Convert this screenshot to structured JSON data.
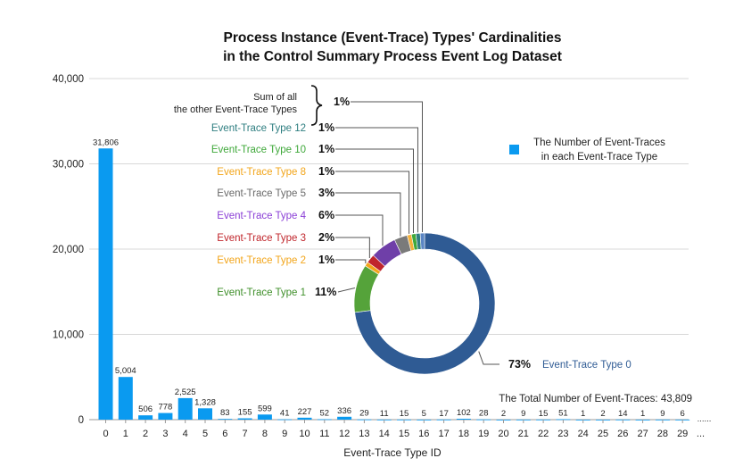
{
  "chart_data": [
    {
      "type": "bar",
      "title_lines": [
        "Process Instance (Event-Trace) Types' Cardinalities",
        "in the Control Summary Process Event Log Dataset"
      ],
      "xlabel": "Event-Trace Type ID",
      "ylabel": "",
      "ylim": [
        0,
        40000
      ],
      "yticks": [
        "0",
        "10,000",
        "20,000",
        "30,000",
        "40,000"
      ],
      "ytick_values": [
        0,
        10000,
        20000,
        30000,
        40000
      ],
      "grid": true,
      "bar_color": "#0a9af0",
      "categories": [
        "0",
        "1",
        "2",
        "3",
        "4",
        "5",
        "6",
        "7",
        "8",
        "9",
        "10",
        "11",
        "12",
        "13",
        "14",
        "15",
        "16",
        "17",
        "18",
        "19",
        "20",
        "21",
        "22",
        "23",
        "24",
        "25",
        "26",
        "27",
        "28",
        "29"
      ],
      "values": [
        31806,
        5004,
        506,
        778,
        2525,
        1328,
        83,
        155,
        599,
        41,
        227,
        52,
        336,
        29,
        11,
        15,
        5,
        17,
        102,
        28,
        2,
        9,
        15,
        51,
        1,
        2,
        14,
        1,
        9,
        6
      ],
      "value_labels": [
        "31,806",
        "5,004",
        "506",
        "778",
        "2,525",
        "1,328",
        "83",
        "155",
        "599",
        "41",
        "227",
        "52",
        "336",
        "29",
        "11",
        "15",
        "5",
        "17",
        "102",
        "28",
        "2",
        "9",
        "15",
        "51",
        "1",
        "2",
        "14",
        "1",
        "9",
        "6"
      ],
      "x_ellipsis": "...",
      "value_ellipsis": "......",
      "legend": "The Number of Event-Traces in each Event-Trace Type",
      "legend_lines": [
        "The Number of Event-Traces",
        "in each Event-Trace Type"
      ],
      "legend_placement": "right"
    },
    {
      "type": "pie",
      "style": "donut",
      "total_label": "The Total Number of Event-Traces: 43,809",
      "slices": [
        {
          "name": "Event-Trace Type 0",
          "value": 73,
          "pct": "73%",
          "color": "#2f5b94",
          "label_color": "#2f5b94"
        },
        {
          "name": "Event-Trace Type 1",
          "value": 11,
          "pct": "11%",
          "color": "#55a33a",
          "label_color": "#3f8f2a"
        },
        {
          "name": "Event-Trace Type 2",
          "value": 1,
          "pct": "1%",
          "color": "#f2a51a",
          "label_color": "#f2a51a"
        },
        {
          "name": "Event-Trace Type 3",
          "value": 2,
          "pct": "2%",
          "color": "#c0262c",
          "label_color": "#c0262c"
        },
        {
          "name": "Event-Trace Type 4",
          "value": 6,
          "pct": "6%",
          "color": "#6f3fa8",
          "label_color": "#8a3ed6"
        },
        {
          "name": "Event-Trace Type 5",
          "value": 3,
          "pct": "3%",
          "color": "#7a7a7a",
          "label_color": "#6a6a6a"
        },
        {
          "name": "Event-Trace Type 8",
          "value": 1,
          "pct": "1%",
          "color": "#f4b13b",
          "label_color": "#f2a51a"
        },
        {
          "name": "Event-Trace Type 10",
          "value": 1,
          "pct": "1%",
          "color": "#3fa83a",
          "label_color": "#3fa83a"
        },
        {
          "name": "Event-Trace Type 12",
          "value": 1,
          "pct": "1%",
          "color": "#2e7e80",
          "label_color": "#2e7e80"
        },
        {
          "name": "Sum of all the other Event-Trace Types",
          "value": 1,
          "pct": "1%",
          "color": "#5b86c4",
          "label_color": "#111111"
        }
      ],
      "other_label_lines": [
        "Sum of all",
        "the other Event-Trace Types"
      ]
    }
  ]
}
